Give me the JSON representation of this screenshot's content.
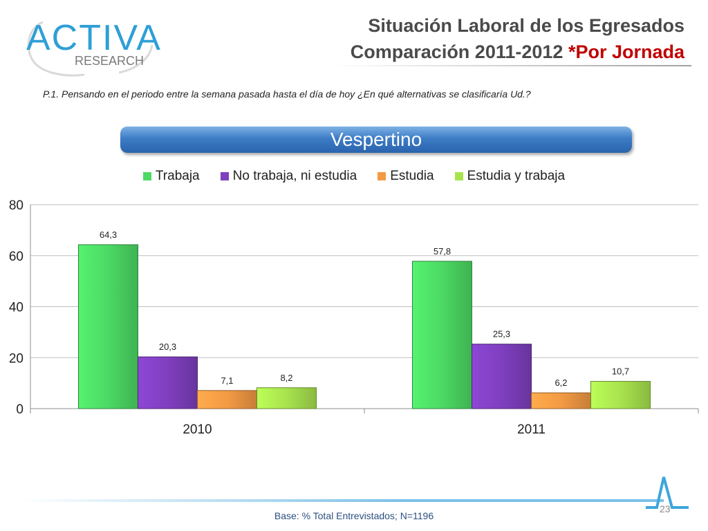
{
  "header": {
    "logo_main": "ACTIVA",
    "logo_sub": "RESEARCH",
    "title_line1": "Situación Laboral de los Egresados",
    "title_line2_prefix": "Comparación 2011-2012 ",
    "title_line2_highlight": "*Por Jornada"
  },
  "question": "P.1.  Pensando en el periodo entre la semana pasada hasta el día de hoy ¿En qué alternativas se clasificaría Ud.?",
  "banner": "Vespertino",
  "colors": {
    "Trabaja": "#4cd964",
    "No trabaja, ni estudia": "#7f3fbf",
    "Estudia": "#f39a44",
    "Estudia y trabaja": "#a8e34e"
  },
  "chart_data": {
    "type": "bar",
    "categories": [
      "2010",
      "2011"
    ],
    "series": [
      {
        "name": "Trabaja",
        "values": [
          64.3,
          57.8
        ],
        "labels": [
          "64,3",
          "57,8"
        ]
      },
      {
        "name": "No trabaja, ni estudia",
        "values": [
          20.3,
          25.3
        ],
        "labels": [
          "20,3",
          "25,3"
        ]
      },
      {
        "name": "Estudia",
        "values": [
          7.1,
          6.2
        ],
        "labels": [
          "7,1",
          "6,2"
        ]
      },
      {
        "name": "Estudia y trabaja",
        "values": [
          8.2,
          10.7
        ],
        "labels": [
          "8,2",
          "10,7"
        ]
      }
    ],
    "yticks": [
      "0",
      "20",
      "40",
      "60",
      "80"
    ],
    "ylim": [
      0,
      80
    ],
    "grid": true,
    "legend": "top"
  },
  "footer": {
    "page_number": "23",
    "base": "Base: % Total Entrevistados; N=1196"
  }
}
